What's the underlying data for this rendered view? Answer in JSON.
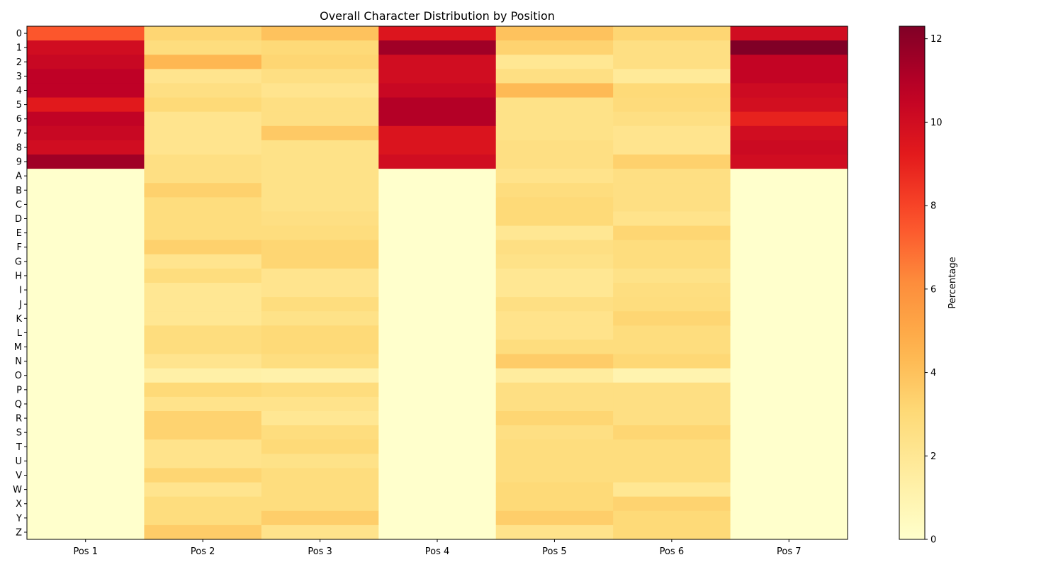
{
  "chart_data": {
    "type": "heatmap",
    "title": "Overall Character Distribution by Position",
    "x_categories": [
      "Pos 1",
      "Pos 2",
      "Pos 3",
      "Pos 4",
      "Pos 5",
      "Pos 6",
      "Pos 7"
    ],
    "y_categories": [
      "0",
      "1",
      "2",
      "3",
      "4",
      "5",
      "6",
      "7",
      "8",
      "9",
      "A",
      "B",
      "C",
      "D",
      "E",
      "F",
      "G",
      "H",
      "I",
      "J",
      "K",
      "L",
      "M",
      "N",
      "O",
      "P",
      "Q",
      "R",
      "S",
      "T",
      "U",
      "V",
      "W",
      "X",
      "Y",
      "Z"
    ],
    "values": [
      [
        7.5,
        3.2,
        4.0,
        9.5,
        4.0,
        3.2,
        10.0
      ],
      [
        10.0,
        2.8,
        3.0,
        11.5,
        3.3,
        2.6,
        12.3
      ],
      [
        10.3,
        4.4,
        3.2,
        10.0,
        2.0,
        2.6,
        10.5
      ],
      [
        10.7,
        2.2,
        2.6,
        10.0,
        2.6,
        1.8,
        10.5
      ],
      [
        10.7,
        2.6,
        2.2,
        10.3,
        4.3,
        3.0,
        10.1
      ],
      [
        9.3,
        3.0,
        2.6,
        11.0,
        2.4,
        2.9,
        9.9
      ],
      [
        10.6,
        2.2,
        2.6,
        11.0,
        2.4,
        2.6,
        9.0
      ],
      [
        10.3,
        2.2,
        3.7,
        9.6,
        2.4,
        2.2,
        10.0
      ],
      [
        10.0,
        2.2,
        2.4,
        9.6,
        2.6,
        2.2,
        10.2
      ],
      [
        11.5,
        2.6,
        2.4,
        10.0,
        2.6,
        3.4,
        10.0
      ],
      [
        0,
        2.6,
        2.4,
        0,
        2.3,
        2.6,
        0
      ],
      [
        0,
        3.4,
        2.4,
        0,
        2.8,
        2.6,
        0
      ],
      [
        0,
        2.8,
        2.4,
        0,
        3.0,
        2.6,
        0
      ],
      [
        0,
        2.8,
        2.6,
        0,
        3.0,
        2.3,
        0
      ],
      [
        0,
        2.8,
        2.8,
        0,
        2.0,
        3.2,
        0
      ],
      [
        0,
        3.4,
        3.2,
        0,
        2.6,
        2.8,
        0
      ],
      [
        0,
        2.2,
        3.2,
        0,
        2.4,
        2.8,
        0
      ],
      [
        0,
        2.8,
        2.2,
        0,
        2.0,
        2.4,
        0
      ],
      [
        0,
        2.0,
        2.2,
        0,
        2.0,
        2.7,
        0
      ],
      [
        0,
        2.0,
        2.8,
        0,
        2.6,
        2.8,
        0
      ],
      [
        0,
        2.0,
        2.4,
        0,
        2.3,
        3.2,
        0
      ],
      [
        0,
        2.8,
        3.0,
        0,
        2.3,
        2.8,
        0
      ],
      [
        0,
        2.8,
        3.0,
        0,
        2.8,
        2.8,
        0
      ],
      [
        0,
        2.2,
        2.7,
        0,
        3.6,
        3.1,
        0
      ],
      [
        0,
        1.3,
        1.2,
        0,
        1.6,
        1.0,
        0
      ],
      [
        0,
        3.0,
        2.8,
        0,
        2.6,
        2.6,
        0
      ],
      [
        0,
        2.3,
        2.3,
        0,
        2.6,
        2.6,
        0
      ],
      [
        0,
        3.3,
        2.0,
        0,
        3.2,
        2.6,
        0
      ],
      [
        0,
        3.3,
        2.8,
        0,
        2.6,
        3.2,
        0
      ],
      [
        0,
        2.3,
        3.0,
        0,
        2.8,
        2.8,
        0
      ],
      [
        0,
        2.3,
        2.4,
        0,
        2.8,
        2.8,
        0
      ],
      [
        0,
        3.2,
        2.8,
        0,
        2.8,
        2.8,
        0
      ],
      [
        0,
        2.2,
        2.8,
        0,
        3.0,
        2.0,
        0
      ],
      [
        0,
        2.8,
        2.8,
        0,
        3.0,
        3.3,
        0
      ],
      [
        0,
        2.8,
        3.5,
        0,
        3.5,
        3.0,
        0
      ],
      [
        0,
        3.6,
        2.3,
        0,
        2.3,
        3.0,
        0
      ]
    ],
    "vmin": 0,
    "vmax": 12.3,
    "colormap": "YlOrRd",
    "colorbar_label": "Percentage",
    "colorbar_ticks": [
      0,
      2,
      4,
      6,
      8,
      10,
      12
    ]
  }
}
